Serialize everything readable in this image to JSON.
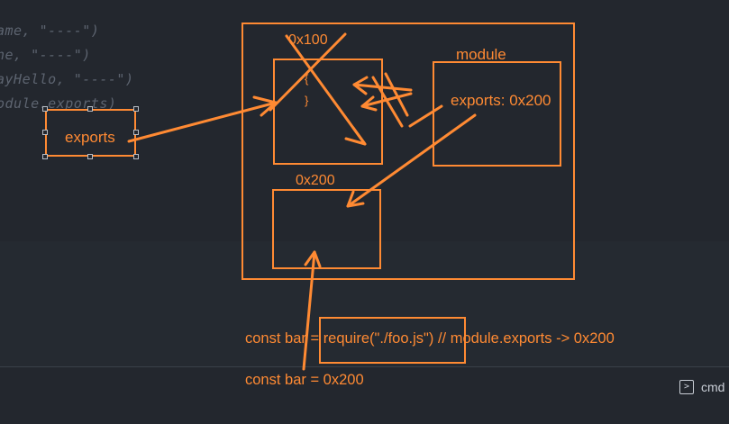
{
  "code_lines": [
    "ame, \"----\")",
    "ne, \"----\")",
    "ayHello, \"----\")",
    "odule.exports)"
  ],
  "diagram": {
    "labels": {
      "addr_0x100": "0x100",
      "brace_open": "{",
      "brace_close": "}",
      "module_title": "module",
      "module_exports": "exports: 0x200",
      "exports_var": "exports",
      "addr_0x200": "0x200"
    },
    "statements": {
      "require_prefix": "const bar = ",
      "require_call": "require(\"./foo.js\")",
      "require_comment": " // module.exports -> 0x200",
      "bar_value": "const bar = 0x200"
    }
  },
  "terminal": {
    "icon": "terminal-icon",
    "label": "cmd"
  },
  "colors": {
    "background": "#23272e",
    "annotation": "#ff8a33",
    "faded_code": "#5d6470"
  }
}
